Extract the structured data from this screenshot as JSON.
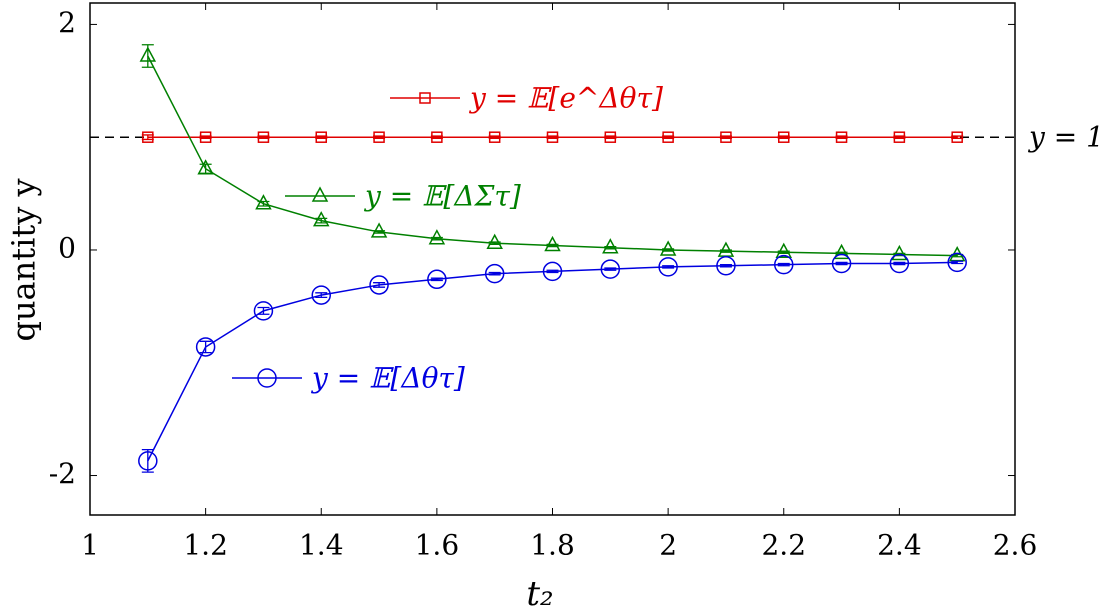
{
  "chart_data": {
    "type": "line",
    "x_label": "t₂",
    "y_label": "quantity y",
    "x": [
      1.1,
      1.2,
      1.3,
      1.4,
      1.5,
      1.6,
      1.7,
      1.8,
      1.9,
      2.0,
      2.1,
      2.2,
      2.3,
      2.4,
      2.5
    ],
    "series": [
      {
        "name": "y = 𝔼[e^Δθτ]",
        "color": "#e00000",
        "marker": "square",
        "values": [
          1,
          1,
          1,
          1,
          1,
          1,
          1,
          1,
          1,
          1,
          1,
          1,
          1,
          1,
          1
        ],
        "errors": [
          0.02,
          0.01,
          0.01,
          0.01,
          0.01,
          0.01,
          0.01,
          0.01,
          0.01,
          0.01,
          0.01,
          0.01,
          0.01,
          0.01,
          0.01
        ]
      },
      {
        "name": "y = 𝔼[ΔΣτ]",
        "color": "#008000",
        "marker": "triangle",
        "values": [
          1.72,
          0.72,
          0.41,
          0.26,
          0.16,
          0.1,
          0.06,
          0.04,
          0.02,
          0.0,
          -0.01,
          -0.02,
          -0.03,
          -0.04,
          -0.05
        ],
        "errors": [
          0.1,
          0.04,
          0.02,
          0.02,
          0.01,
          0.01,
          0.01,
          0.01,
          0.01,
          0.01,
          0.01,
          0.01,
          0.01,
          0.01,
          0.01
        ]
      },
      {
        "name": "y = 𝔼[Δθτ]",
        "color": "#0000e0",
        "marker": "circle",
        "values": [
          -1.87,
          -0.86,
          -0.54,
          -0.4,
          -0.31,
          -0.26,
          -0.21,
          -0.19,
          -0.17,
          -0.15,
          -0.14,
          -0.13,
          -0.12,
          -0.12,
          -0.11
        ],
        "errors": [
          0.1,
          0.05,
          0.03,
          0.02,
          0.02,
          0.01,
          0.01,
          0.01,
          0.01,
          0.01,
          0.01,
          0.01,
          0.01,
          0.01,
          0.01
        ]
      }
    ],
    "reference_line": {
      "value": 1,
      "label": "y = 1"
    },
    "xlim": [
      1,
      2.6
    ],
    "xticks": [
      1,
      1.2,
      1.4,
      1.6,
      1.8,
      2,
      2.2,
      2.4,
      2.6
    ],
    "ylim": [
      -2.35,
      2.19
    ],
    "yticks": [
      -2,
      0,
      2
    ]
  }
}
